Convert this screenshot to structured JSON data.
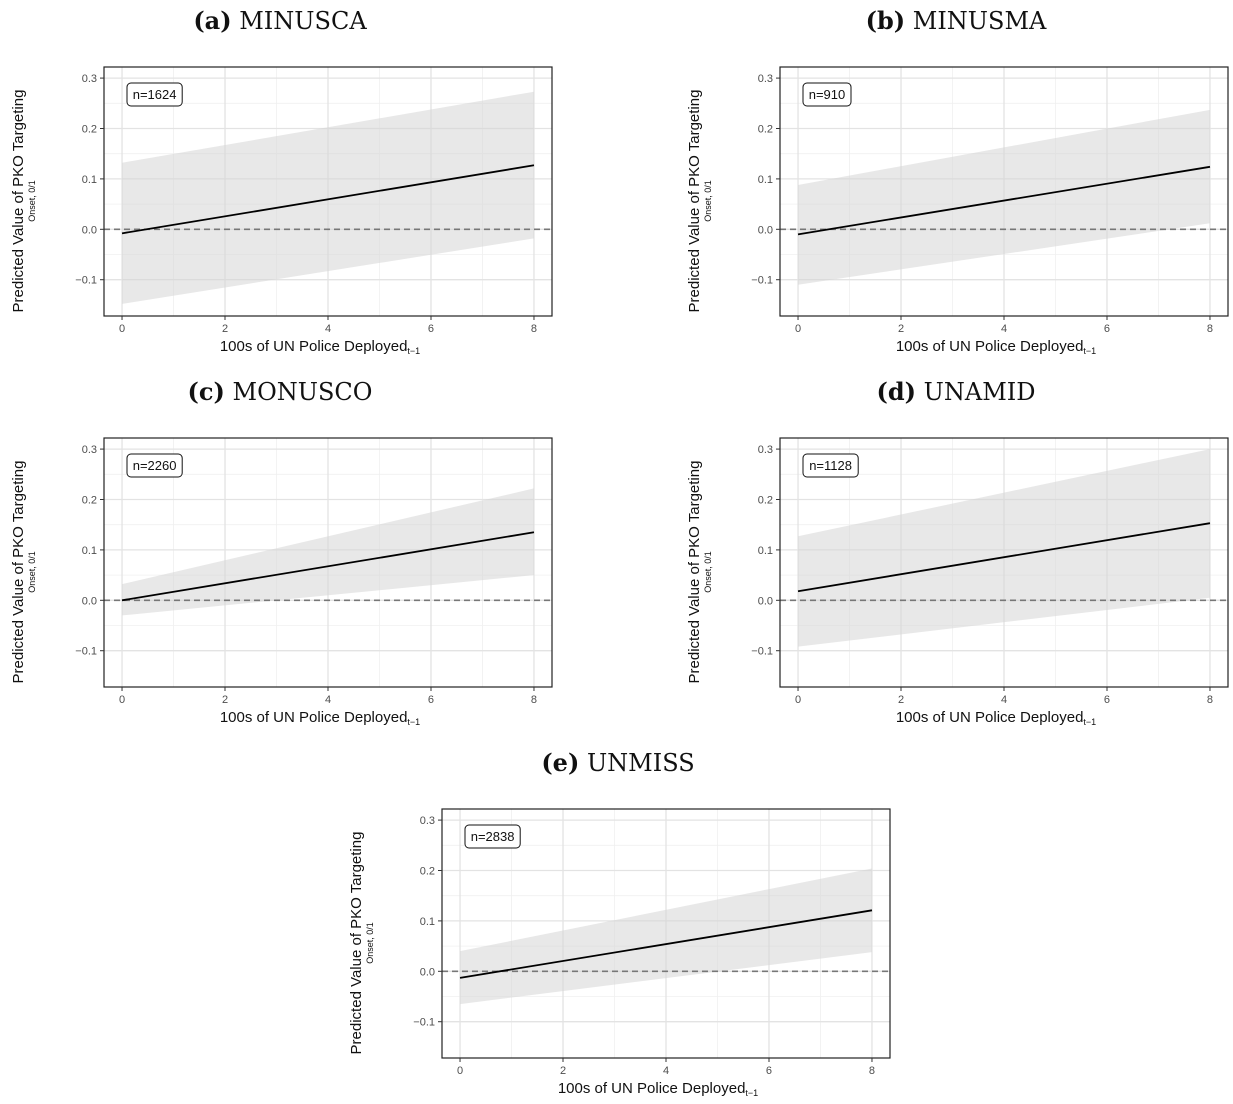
{
  "chart_data": [
    {
      "type": "line",
      "panel_letter": "(a)",
      "title": "MINUSCA",
      "xlabel": "100s of UN Police Deployed",
      "xlabel_sub": "t−1",
      "ylabel": "Predicted Value of PKO Targeting",
      "ylabel_sub": "Onset, 0/1",
      "annotation": "n=1624",
      "xlim": [
        -0.35,
        8.35
      ],
      "ylim": [
        -0.172,
        0.322
      ],
      "x_ticks": [
        0,
        2,
        4,
        6,
        8
      ],
      "y_ticks": [
        -0.1,
        0.0,
        0.1,
        0.2,
        0.3
      ],
      "x_tick_labels": [
        "0",
        "2",
        "4",
        "6",
        "8"
      ],
      "y_tick_labels": [
        "−0.1",
        "0.0",
        "0.1",
        "0.2",
        "0.3"
      ],
      "reference_line_y": 0,
      "grid": true,
      "series": [
        {
          "x": [
            0,
            8
          ],
          "y": [
            -0.008,
            0.127
          ],
          "ci_low": [
            -0.148,
            -0.018
          ],
          "ci_high": [
            0.132,
            0.273
          ]
        }
      ]
    },
    {
      "type": "line",
      "panel_letter": "(b)",
      "title": "MINUSMA",
      "xlabel": "100s of UN Police Deployed",
      "xlabel_sub": "t−1",
      "ylabel": "Predicted Value of PKO Targeting",
      "ylabel_sub": "Onset, 0/1",
      "annotation": "n=910",
      "xlim": [
        -0.35,
        8.35
      ],
      "ylim": [
        -0.172,
        0.322
      ],
      "x_ticks": [
        0,
        2,
        4,
        6,
        8
      ],
      "y_ticks": [
        -0.1,
        0.0,
        0.1,
        0.2,
        0.3
      ],
      "x_tick_labels": [
        "0",
        "2",
        "4",
        "6",
        "8"
      ],
      "y_tick_labels": [
        "−0.1",
        "0.0",
        "0.1",
        "0.2",
        "0.3"
      ],
      "reference_line_y": 0,
      "grid": true,
      "series": [
        {
          "x": [
            0,
            8
          ],
          "y": [
            -0.01,
            0.124
          ],
          "ci_low": [
            -0.11,
            0.012
          ],
          "ci_high": [
            0.088,
            0.237
          ]
        }
      ]
    },
    {
      "type": "line",
      "panel_letter": "(c)",
      "title": "MONUSCO",
      "xlabel": "100s of UN Police Deployed",
      "xlabel_sub": "t−1",
      "ylabel": "Predicted Value of PKO Targeting",
      "ylabel_sub": "Onset, 0/1",
      "annotation": "n=2260",
      "xlim": [
        -0.35,
        8.35
      ],
      "ylim": [
        -0.172,
        0.322
      ],
      "x_ticks": [
        0,
        2,
        4,
        6,
        8
      ],
      "y_ticks": [
        -0.1,
        0.0,
        0.1,
        0.2,
        0.3
      ],
      "x_tick_labels": [
        "0",
        "2",
        "4",
        "6",
        "8"
      ],
      "y_tick_labels": [
        "−0.1",
        "0.0",
        "0.1",
        "0.2",
        "0.3"
      ],
      "reference_line_y": 0,
      "grid": true,
      "series": [
        {
          "x": [
            0,
            8
          ],
          "y": [
            0.0,
            0.135
          ],
          "ci_low": [
            -0.03,
            0.05
          ],
          "ci_high": [
            0.032,
            0.222
          ]
        }
      ]
    },
    {
      "type": "line",
      "panel_letter": "(d)",
      "title": "UNAMID",
      "xlabel": "100s of UN Police Deployed",
      "xlabel_sub": "t−1",
      "ylabel": "Predicted Value of PKO Targeting",
      "ylabel_sub": "Onset, 0/1",
      "annotation": "n=1128",
      "xlim": [
        -0.35,
        8.35
      ],
      "ylim": [
        -0.172,
        0.322
      ],
      "x_ticks": [
        0,
        2,
        4,
        6,
        8
      ],
      "y_ticks": [
        -0.1,
        0.0,
        0.1,
        0.2,
        0.3
      ],
      "x_tick_labels": [
        "0",
        "2",
        "4",
        "6",
        "8"
      ],
      "y_tick_labels": [
        "−0.1",
        "0.0",
        "0.1",
        "0.2",
        "0.3"
      ],
      "reference_line_y": 0,
      "grid": true,
      "series": [
        {
          "x": [
            0,
            8
          ],
          "y": [
            0.018,
            0.153
          ],
          "ci_low": [
            -0.092,
            0.005
          ],
          "ci_high": [
            0.127,
            0.3
          ]
        }
      ]
    },
    {
      "type": "line",
      "panel_letter": "(e)",
      "title": "UNMISS",
      "xlabel": "100s of UN Police Deployed",
      "xlabel_sub": "t−1",
      "ylabel": "Predicted Value of PKO Targeting",
      "ylabel_sub": "Onset, 0/1",
      "annotation": "n=2838",
      "xlim": [
        -0.35,
        8.35
      ],
      "ylim": [
        -0.172,
        0.322
      ],
      "x_ticks": [
        0,
        2,
        4,
        6,
        8
      ],
      "y_ticks": [
        -0.1,
        0.0,
        0.1,
        0.2,
        0.3
      ],
      "x_tick_labels": [
        "0",
        "2",
        "4",
        "6",
        "8"
      ],
      "y_tick_labels": [
        "−0.1",
        "0.0",
        "0.1",
        "0.2",
        "0.3"
      ],
      "reference_line_y": 0,
      "grid": true,
      "series": [
        {
          "x": [
            0,
            8
          ],
          "y": [
            -0.013,
            0.121
          ],
          "ci_low": [
            -0.065,
            0.038
          ],
          "ci_high": [
            0.04,
            0.204
          ]
        }
      ]
    }
  ]
}
